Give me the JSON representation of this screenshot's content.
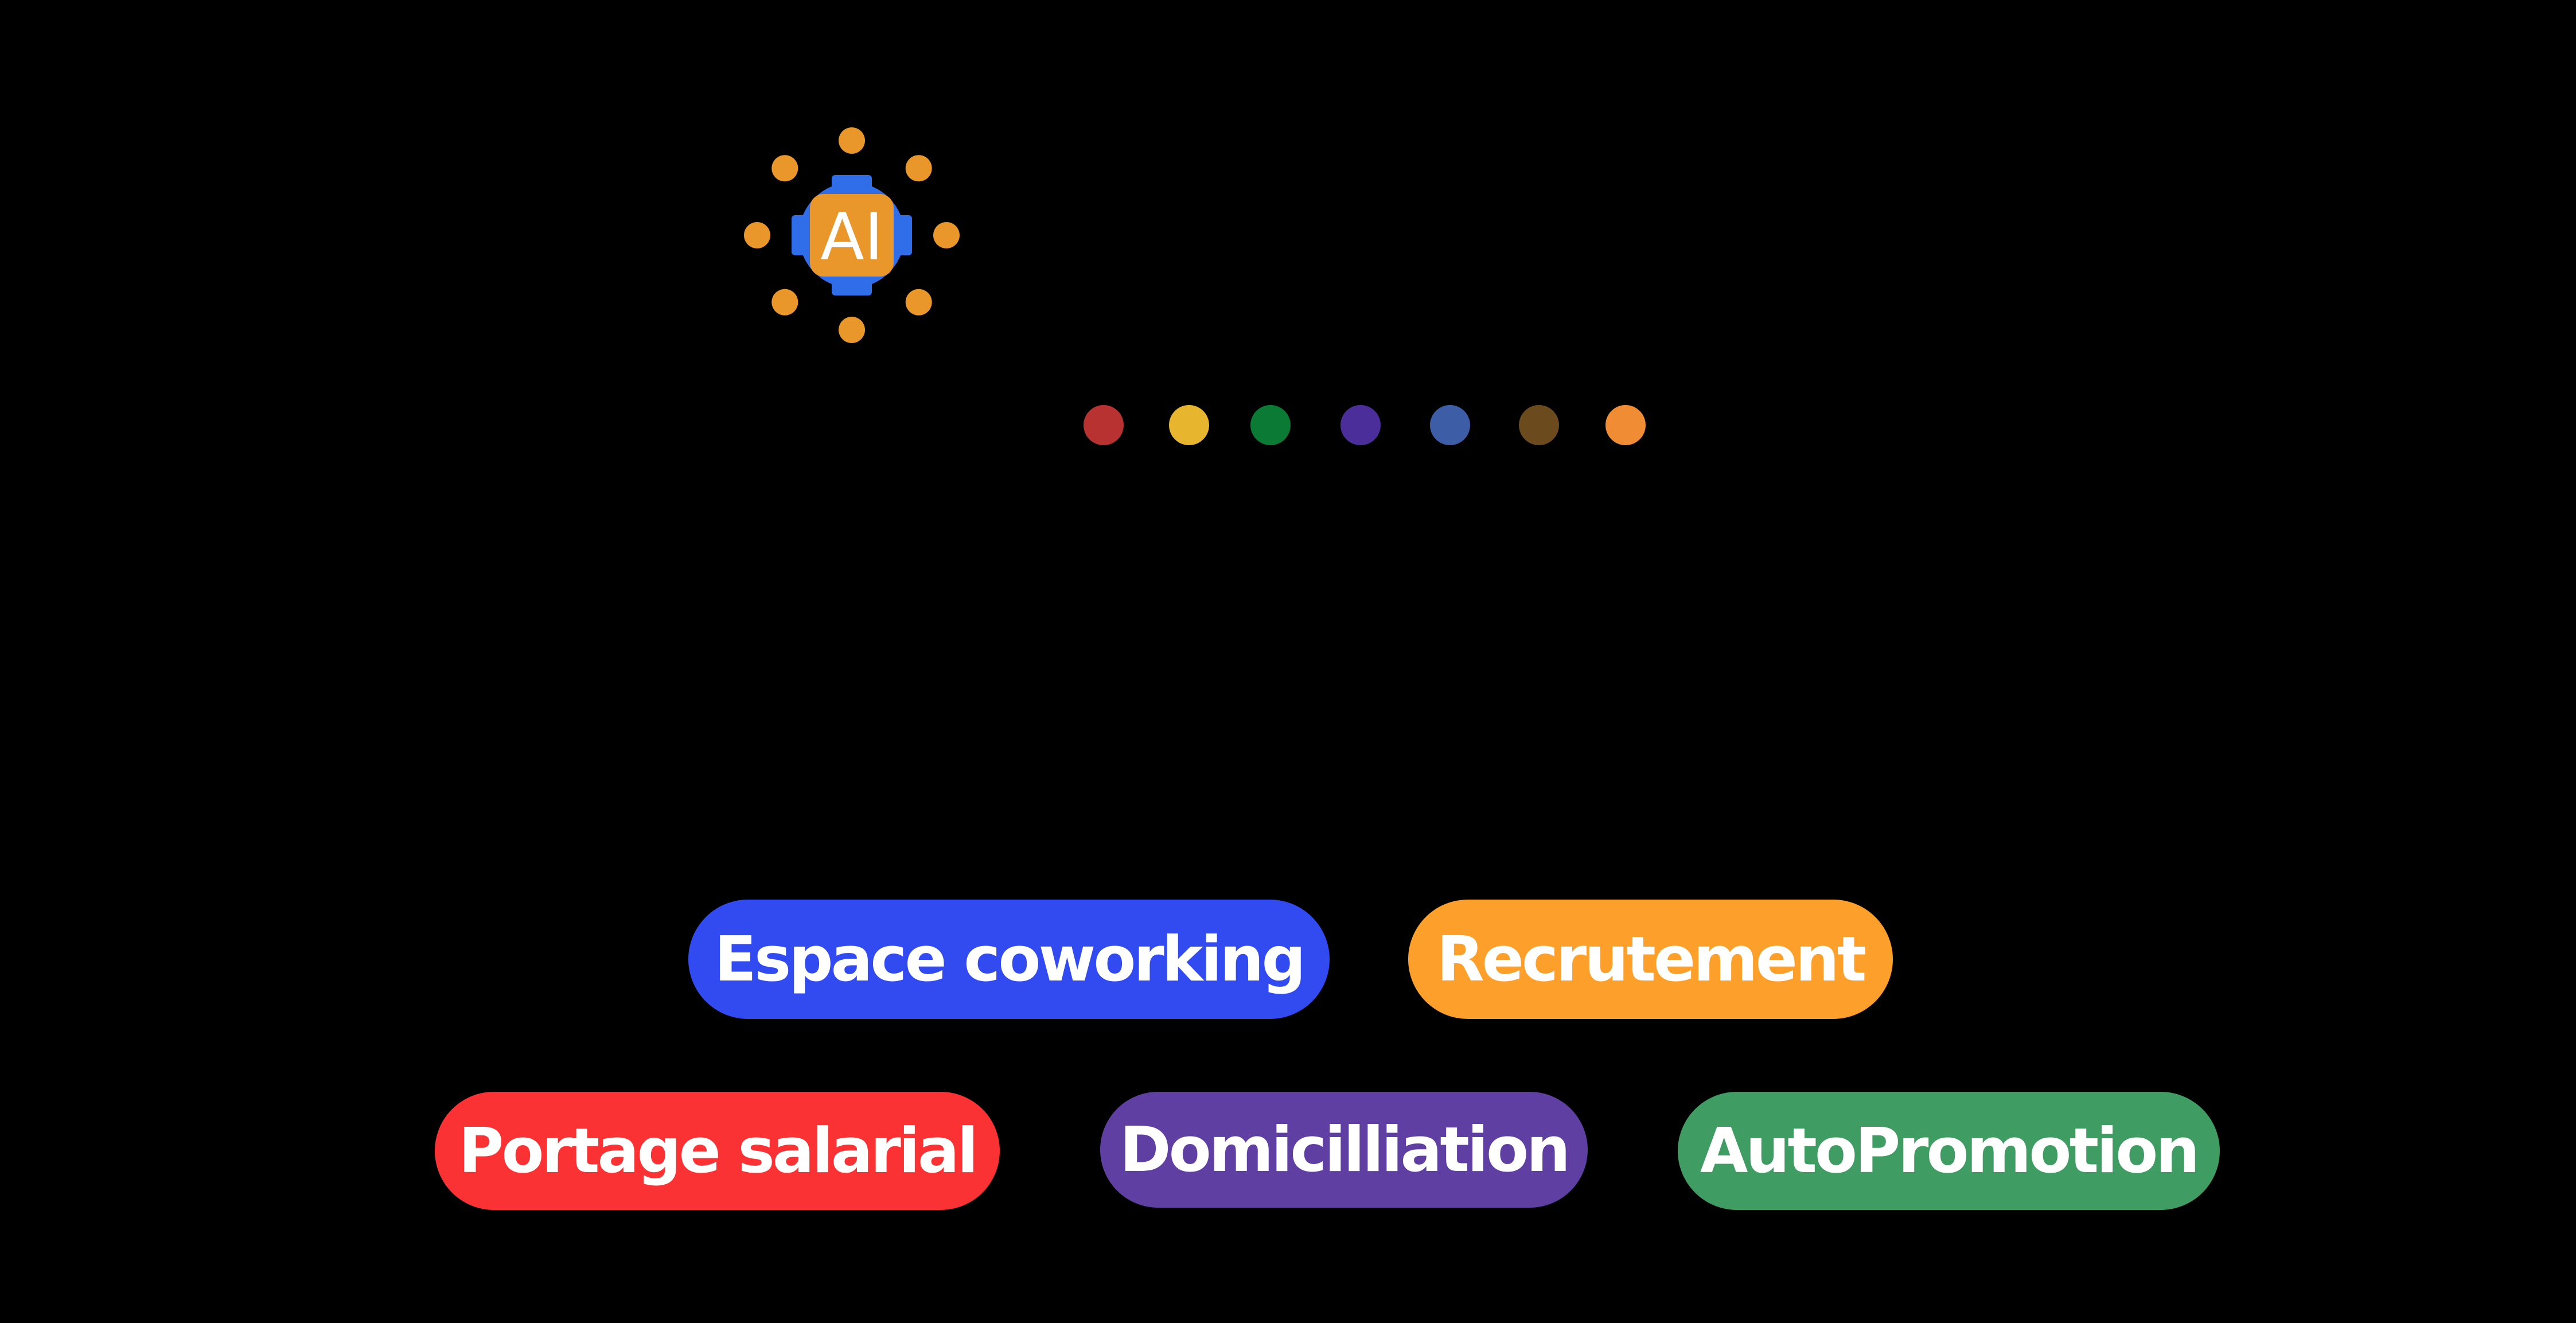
{
  "logo": {
    "text": "AI",
    "icon": "ai-chip-icon",
    "dot_color": "#E9962A",
    "ring_color": "#2F6EE8",
    "chip_color": "#E9962A"
  },
  "color_dots": [
    {
      "name": "red",
      "color": "#B83232"
    },
    {
      "name": "yellow",
      "color": "#E8B52E"
    },
    {
      "name": "green",
      "color": "#0A7A35"
    },
    {
      "name": "purple",
      "color": "#4B2E9A"
    },
    {
      "name": "blue",
      "color": "#3D5EA6"
    },
    {
      "name": "brown",
      "color": "#6B4A1E"
    },
    {
      "name": "orange",
      "color": "#EF8C34"
    }
  ],
  "tags": [
    {
      "label": "Espace coworking",
      "color": "#324BF0"
    },
    {
      "label": "Recrutement",
      "color": "#FCA02B"
    },
    {
      "label": "Portage salarial",
      "color": "#FB3233"
    },
    {
      "label": "Domicilliation",
      "color": "#5F3FA2"
    },
    {
      "label": "AutoPromotion",
      "color": "#3F9C62"
    }
  ]
}
